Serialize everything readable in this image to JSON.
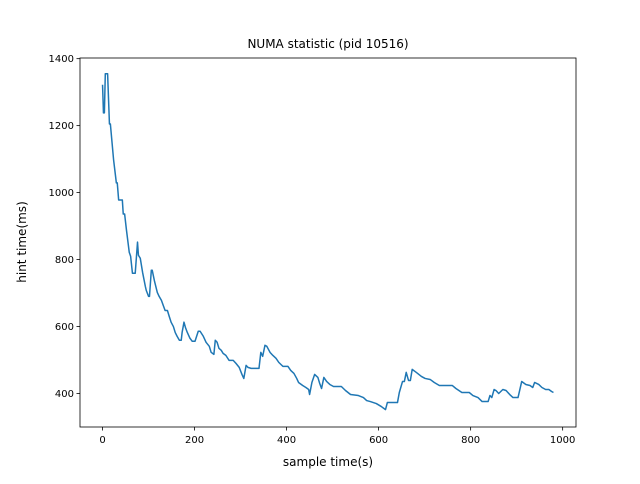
{
  "chart_data": {
    "type": "line",
    "title": "NUMA statistic (pid 10516)",
    "x_label": "sample time(s)",
    "y_label": "hint time(ms)",
    "xlim": [
      -49,
      1029
    ],
    "ylim": [
      300,
      1402
    ],
    "xticks": [
      0,
      200,
      400,
      600,
      800,
      1000
    ],
    "yticks": [
      400,
      600,
      800,
      1000,
      1200,
      1400
    ],
    "x": [
      0,
      2,
      4,
      6,
      11,
      15,
      17,
      24,
      30,
      32,
      35,
      43,
      45,
      48,
      52,
      58,
      61,
      65,
      71,
      76,
      78,
      82,
      87,
      93,
      95,
      100,
      102,
      106,
      108,
      113,
      119,
      123,
      128,
      132,
      136,
      141,
      145,
      149,
      154,
      158,
      162,
      167,
      171,
      173,
      177,
      180,
      184,
      190,
      195,
      201,
      208,
      212,
      219,
      225,
      232,
      236,
      242,
      245,
      249,
      253,
      258,
      262,
      268,
      275,
      284,
      290,
      297,
      303,
      307,
      312,
      316,
      323,
      340,
      344,
      348,
      353,
      357,
      364,
      370,
      377,
      383,
      392,
      403,
      409,
      416,
      422,
      426,
      435,
      442,
      448,
      450,
      455,
      461,
      468,
      472,
      476,
      481,
      487,
      494,
      502,
      519,
      528,
      539,
      556,
      567,
      574,
      582,
      595,
      606,
      615,
      619,
      641,
      645,
      652,
      656,
      660,
      665,
      669,
      673,
      682,
      693,
      701,
      712,
      721,
      732,
      760,
      768,
      781,
      797,
      805,
      816,
      825,
      838,
      842,
      846,
      851,
      855,
      861,
      870,
      877,
      885,
      892,
      903,
      911,
      920,
      929,
      935,
      939,
      948,
      955,
      963,
      970,
      976,
      980
    ],
    "series": [
      {
        "name": "hint time",
        "color": "#1f77b4",
        "values": [
          1322,
          1238,
          1238,
          1355,
          1355,
          1205,
          1205,
          1098,
          1029,
          1029,
          978,
          978,
          936,
          936,
          888,
          822,
          810,
          759,
          759,
          852,
          813,
          804,
          762,
          720,
          708,
          690,
          690,
          768,
          768,
          735,
          702,
          690,
          678,
          663,
          648,
          648,
          630,
          613,
          600,
          582,
          571,
          559,
          559,
          583,
          613,
          598,
          583,
          565,
          556,
          556,
          586,
          586,
          571,
          553,
          541,
          523,
          517,
          559,
          553,
          535,
          529,
          520,
          514,
          499,
          499,
          490,
          478,
          457,
          445,
          484,
          478,
          475,
          475,
          523,
          511,
          544,
          541,
          523,
          514,
          505,
          493,
          481,
          481,
          469,
          460,
          445,
          433,
          424,
          418,
          412,
          397,
          433,
          457,
          448,
          430,
          415,
          448,
          436,
          427,
          421,
          421,
          409,
          397,
          394,
          388,
          379,
          376,
          370,
          361,
          352,
          373,
          373,
          403,
          436,
          436,
          463,
          439,
          439,
          472,
          463,
          451,
          445,
          442,
          433,
          424,
          424,
          415,
          403,
          403,
          394,
          388,
          376,
          376,
          394,
          388,
          412,
          409,
          400,
          412,
          409,
          397,
          388,
          388,
          436,
          427,
          424,
          418,
          433,
          427,
          418,
          412,
          412,
          406,
          403
        ]
      }
    ]
  }
}
